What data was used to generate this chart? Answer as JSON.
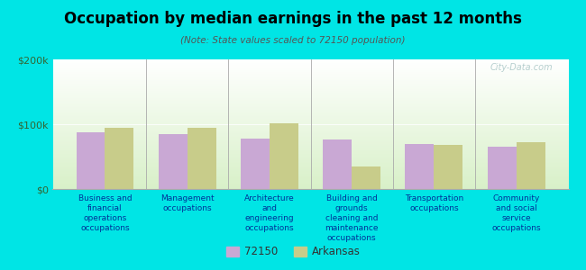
{
  "title": "Occupation by median earnings in the past 12 months",
  "subtitle": "(Note: State values scaled to 72150 population)",
  "categories": [
    "Business and\nfinancial\noperations\noccupations",
    "Management\noccupations",
    "Architecture\nand\nengineering\noccupations",
    "Building and\ngrounds\ncleaning and\nmaintenance\noccupations",
    "Transportation\noccupations",
    "Community\nand social\nservice\noccupations"
  ],
  "values_72150": [
    88000,
    85000,
    78000,
    76000,
    70000,
    65000
  ],
  "values_arkansas": [
    95000,
    95000,
    102000,
    35000,
    68000,
    72000
  ],
  "color_72150": "#c9a8d4",
  "color_arkansas": "#c8cc8a",
  "ylim": [
    0,
    200000
  ],
  "ytick_labels": [
    "$0",
    "$100k",
    "$200k"
  ],
  "background_color": "#00e5e5",
  "legend_label_72150": "72150",
  "legend_label_arkansas": "Arkansas",
  "watermark": "City-Data.com"
}
